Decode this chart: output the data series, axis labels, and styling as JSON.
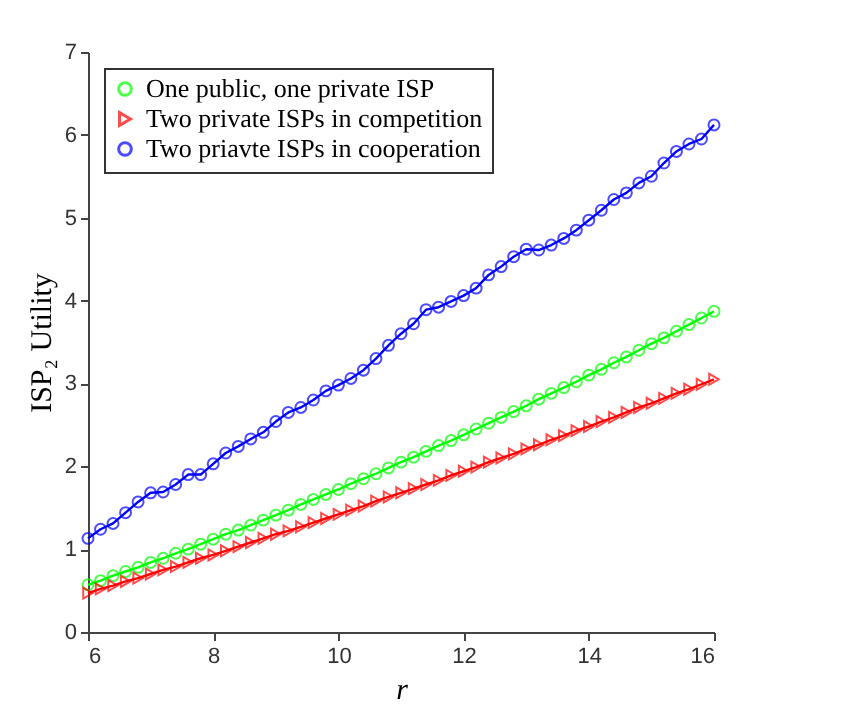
{
  "chart_data": {
    "type": "line",
    "xlabel": "r",
    "ylabel": "ISP₂ Utility",
    "xlim": [
      6,
      16
    ],
    "ylim": [
      0,
      7
    ],
    "xticks": [
      6,
      8,
      10,
      12,
      14,
      16
    ],
    "yticks": [
      0,
      1,
      2,
      3,
      4,
      5,
      6,
      7
    ],
    "legend": "top left",
    "grid": false,
    "x": [
      6,
      6.2,
      6.4,
      6.6,
      6.8,
      7,
      7.2,
      7.4,
      7.6,
      7.8,
      8,
      8.2,
      8.4,
      8.6,
      8.8,
      9,
      9.2,
      9.4,
      9.6,
      9.8,
      10,
      10.2,
      10.4,
      10.6,
      10.8,
      11,
      11.2,
      11.4,
      11.6,
      11.8,
      12,
      12.2,
      12.4,
      12.6,
      12.8,
      13,
      13.2,
      13.4,
      13.6,
      13.8,
      14,
      14.2,
      14.4,
      14.6,
      14.8,
      15,
      15.2,
      15.4,
      15.6,
      15.8,
      16
    ],
    "series": [
      {
        "name": "One public, one private ISP",
        "color": "#00ff00",
        "marker": "circle",
        "values": [
          0.57,
          0.62,
          0.68,
          0.73,
          0.78,
          0.84,
          0.89,
          0.95,
          1.0,
          1.06,
          1.12,
          1.18,
          1.23,
          1.29,
          1.35,
          1.41,
          1.47,
          1.54,
          1.6,
          1.66,
          1.72,
          1.79,
          1.85,
          1.91,
          1.98,
          2.05,
          2.11,
          2.18,
          2.25,
          2.31,
          2.38,
          2.45,
          2.52,
          2.59,
          2.66,
          2.73,
          2.81,
          2.88,
          2.95,
          3.02,
          3.1,
          3.17,
          3.25,
          3.32,
          3.4,
          3.48,
          3.55,
          3.63,
          3.71,
          3.79,
          3.87
        ]
      },
      {
        "name": "Two private ISPs in competition",
        "color": "#ff0000",
        "marker": "triangle",
        "values": [
          0.47,
          0.52,
          0.56,
          0.61,
          0.65,
          0.7,
          0.75,
          0.79,
          0.84,
          0.89,
          0.93,
          0.98,
          1.03,
          1.08,
          1.13,
          1.18,
          1.22,
          1.27,
          1.32,
          1.37,
          1.42,
          1.47,
          1.52,
          1.58,
          1.63,
          1.68,
          1.73,
          1.78,
          1.83,
          1.89,
          1.94,
          1.99,
          2.05,
          2.1,
          2.15,
          2.21,
          2.26,
          2.32,
          2.37,
          2.43,
          2.48,
          2.54,
          2.59,
          2.65,
          2.71,
          2.76,
          2.82,
          2.88,
          2.93,
          2.99,
          3.05
        ]
      },
      {
        "name": "Two priavte ISPs in cooperation",
        "color": "#0000ff",
        "marker": "circle",
        "values": [
          1.13,
          1.24,
          1.31,
          1.44,
          1.57,
          1.68,
          1.69,
          1.78,
          1.9,
          1.9,
          2.03,
          2.16,
          2.24,
          2.33,
          2.41,
          2.54,
          2.65,
          2.71,
          2.8,
          2.91,
          2.98,
          3.06,
          3.16,
          3.3,
          3.46,
          3.6,
          3.72,
          3.89,
          3.92,
          3.99,
          4.06,
          4.15,
          4.31,
          4.41,
          4.53,
          4.62,
          4.61,
          4.67,
          4.75,
          4.85,
          4.97,
          5.09,
          5.22,
          5.3,
          5.42,
          5.5,
          5.66,
          5.8,
          5.89,
          5.95,
          6.12
        ]
      }
    ]
  }
}
